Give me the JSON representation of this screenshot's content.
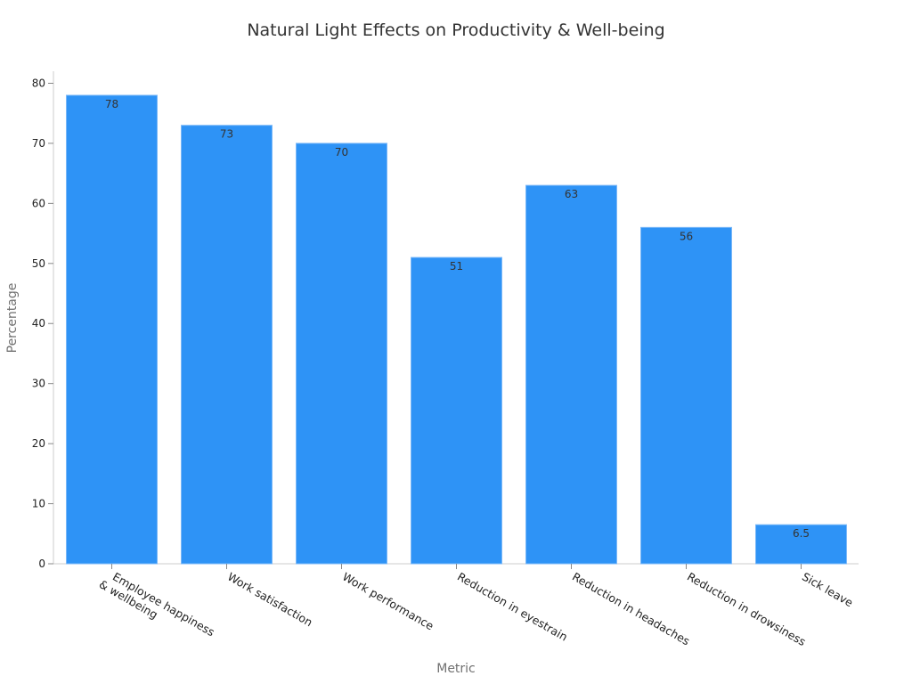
{
  "chart_data": {
    "type": "bar",
    "title": "Natural Light Effects on Productivity & Well-being",
    "xlabel": "Metric",
    "ylabel": "Percentage",
    "categories": [
      [
        "Employee happiness",
        "& wellbeing"
      ],
      [
        "Work satisfaction"
      ],
      [
        "Work performance"
      ],
      [
        "Reduction in eyestrain"
      ],
      [
        "Reduction in headaches"
      ],
      [
        "Reduction in drowsiness"
      ],
      [
        "Sick leave"
      ]
    ],
    "values": [
      78,
      73,
      70,
      51,
      63,
      56,
      6.5
    ],
    "data_labels": [
      "78",
      "73",
      "70",
      "51",
      "63",
      "56",
      "6.5"
    ],
    "ylim": [
      0,
      82
    ],
    "yticks": [
      0,
      10,
      20,
      30,
      40,
      50,
      60,
      70,
      80
    ],
    "grid": false,
    "legend": "none",
    "bar_color": "#2e93f6"
  }
}
